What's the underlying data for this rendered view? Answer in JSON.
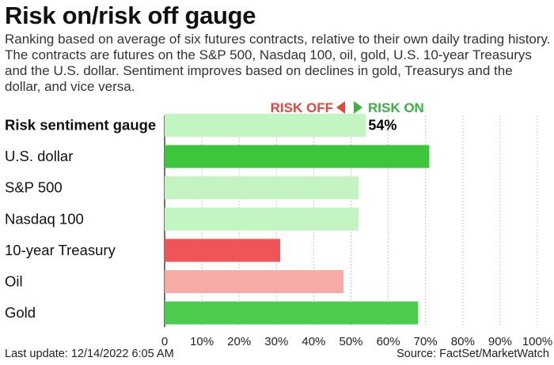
{
  "header": {
    "title": "Risk on/risk off gauge",
    "subtitle": "Ranking based on average of six futures contracts, relative to their own daily trading history. The contracts are futures on the S&P 500, Nasdaq 100, oil, gold, U.S. 10-year Treasurys and the U.S. dollar. Sentiment improves based on declines in gold, Treasurys and the dollar, and vice versa."
  },
  "legend": {
    "risk_off": "RISK OFF",
    "risk_on": "RISK ON",
    "risk_off_color": "#e8453c",
    "risk_on_color": "#3cb043"
  },
  "chart_data": {
    "type": "bar",
    "orientation": "horizontal",
    "categories": [
      "Risk sentiment gauge",
      "U.S. dollar",
      "S&P 500",
      "Nasdaq 100",
      "10-year Treasury",
      "Oil",
      "Gold"
    ],
    "values": [
      54,
      71,
      52,
      52,
      31,
      48,
      68
    ],
    "colors": [
      "#c2f5c2",
      "#3cc63c",
      "#c2f5c2",
      "#c2f5c2",
      "#ef5456",
      "#f7aaa6",
      "#4ccc4c"
    ],
    "bold_category": "Risk sentiment gauge",
    "value_label": "54%",
    "xlim": [
      0,
      100
    ],
    "xticks": [
      "0",
      "10%",
      "20%",
      "30%",
      "40%",
      "50%",
      "60%",
      "70%",
      "80%",
      "90%",
      "100%"
    ],
    "grid": true
  },
  "footer": {
    "updated": "Last update: 12/14/2022 6:05 AM",
    "source": "Source: FactSet/MarketWatch"
  }
}
